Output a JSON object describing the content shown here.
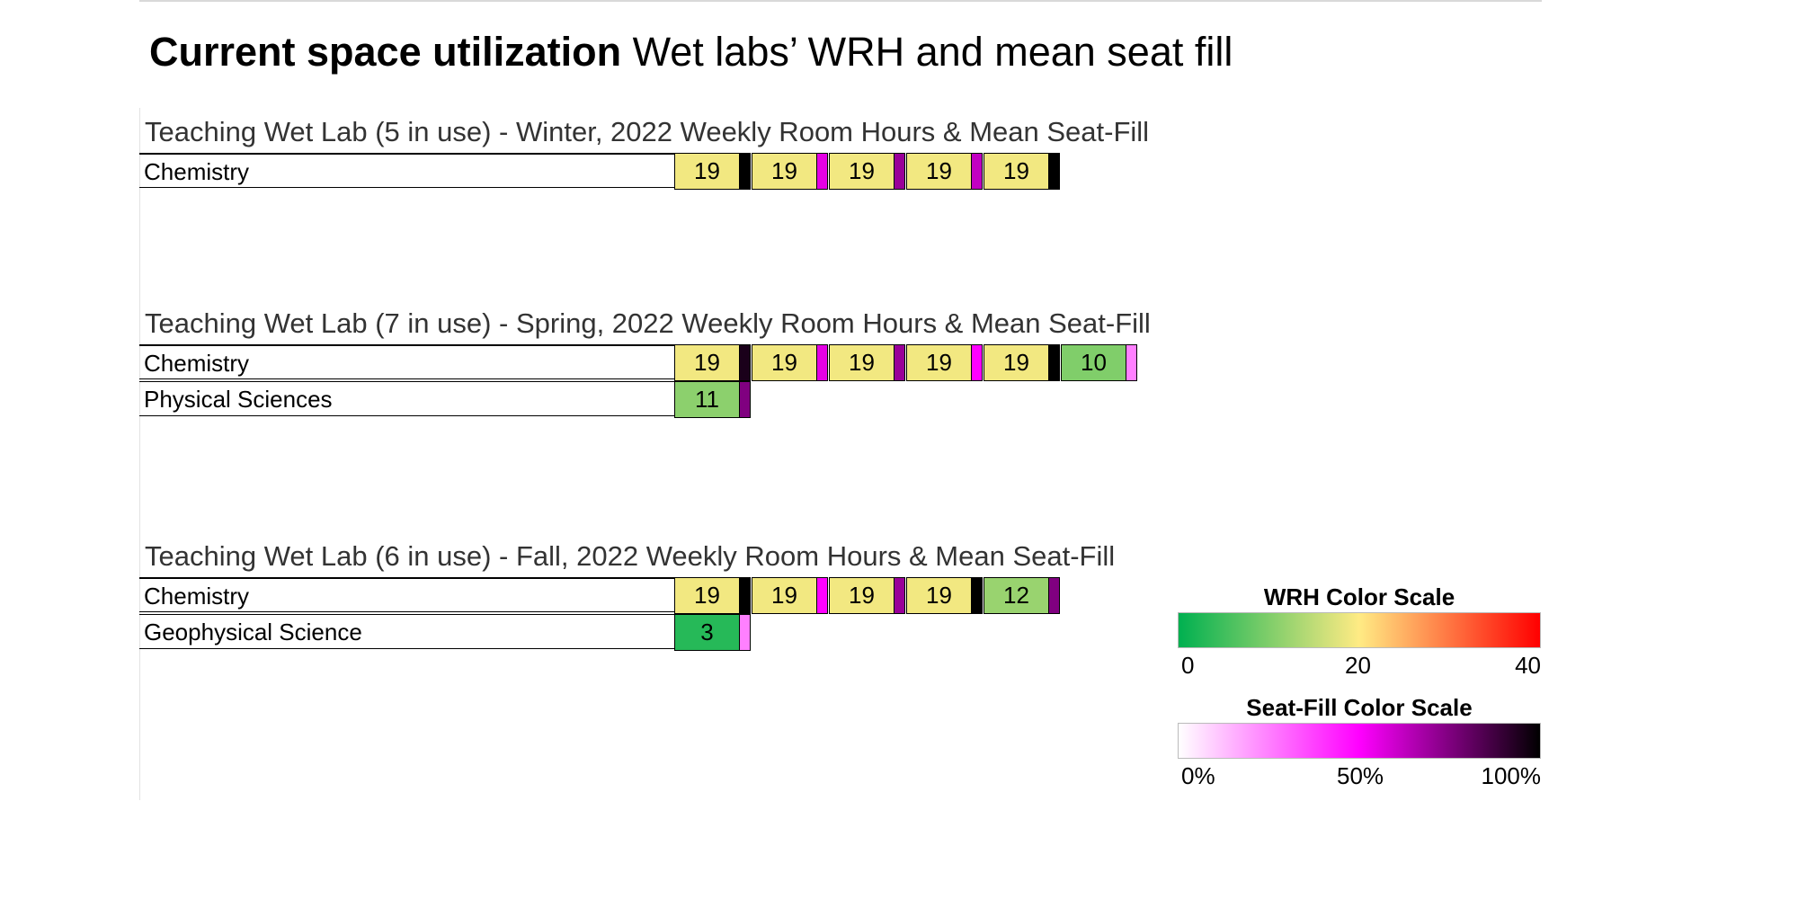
{
  "header": {
    "title_bold": "Current space utilization",
    "title_rest": "Wet labs’ WRH and mean seat fill"
  },
  "chart_data": {
    "type": "table",
    "sections": [
      {
        "title": "Teaching Wet Lab (5 in use) - Winter, 2022 Weekly Room Hours & Mean Seat-Fill",
        "rows": [
          {
            "label": "Chemistry",
            "rooms": [
              {
                "wrh": 19,
                "seat_fill": 1.0
              },
              {
                "wrh": 19,
                "seat_fill": 0.55
              },
              {
                "wrh": 19,
                "seat_fill": 0.7
              },
              {
                "wrh": 19,
                "seat_fill": 0.62
              },
              {
                "wrh": 19,
                "seat_fill": 1.0
              }
            ]
          }
        ]
      },
      {
        "title": "Teaching Wet Lab (7 in use) - Spring, 2022 Weekly Room Hours & Mean Seat-Fill",
        "rows": [
          {
            "label": "Chemistry",
            "rooms": [
              {
                "wrh": 19,
                "seat_fill": 0.95
              },
              {
                "wrh": 19,
                "seat_fill": 0.55
              },
              {
                "wrh": 19,
                "seat_fill": 0.7
              },
              {
                "wrh": 19,
                "seat_fill": 0.5
              },
              {
                "wrh": 19,
                "seat_fill": 1.0
              },
              {
                "wrh": 10,
                "seat_fill": 0.25
              }
            ]
          },
          {
            "label": "Physical Sciences",
            "rooms": [
              {
                "wrh": 11,
                "seat_fill": 0.75
              }
            ]
          }
        ]
      },
      {
        "title": "Teaching Wet Lab (6 in use) - Fall, 2022 Weekly Room Hours & Mean Seat-Fill",
        "rows": [
          {
            "label": "Chemistry",
            "rooms": [
              {
                "wrh": 19,
                "seat_fill": 1.0
              },
              {
                "wrh": 19,
                "seat_fill": 0.5
              },
              {
                "wrh": 19,
                "seat_fill": 0.7
              },
              {
                "wrh": 19,
                "seat_fill": 1.0
              },
              {
                "wrh": 12,
                "seat_fill": 0.75
              }
            ]
          },
          {
            "label": "Geophysical Science",
            "rooms": [
              {
                "wrh": 3,
                "seat_fill": 0.25
              }
            ]
          }
        ]
      }
    ]
  },
  "legend": {
    "wrh": {
      "title": "WRH Color Scale",
      "min": 0,
      "mid": 20,
      "max": 40,
      "labels": [
        "0",
        "20",
        "40"
      ],
      "colors": [
        "#00b050",
        "#ffeb84",
        "#ff0000"
      ]
    },
    "seat_fill": {
      "title": "Seat-Fill Color Scale",
      "min": 0,
      "mid": 0.5,
      "max": 1,
      "labels": [
        "0%",
        "50%",
        "100%"
      ],
      "colors": [
        "#ffffff",
        "#ff00ff",
        "#000000"
      ]
    }
  }
}
